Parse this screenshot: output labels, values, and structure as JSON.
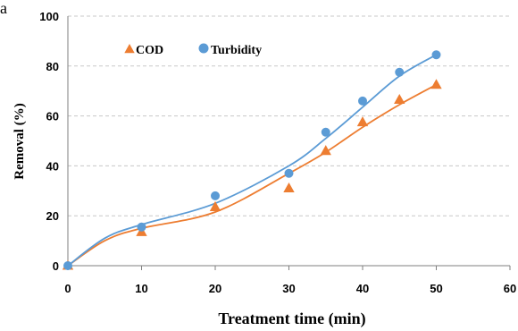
{
  "panel_label": "a",
  "chart_data": {
    "type": "scatter",
    "title": "",
    "xlabel": "Treatment time (min)",
    "ylabel": "Removal (%)",
    "xlim": [
      0,
      60
    ],
    "ylim": [
      0,
      100
    ],
    "xticks": [
      "0",
      "10",
      "20",
      "30",
      "40",
      "50",
      "60"
    ],
    "yticks": [
      "0",
      "20",
      "40",
      "60",
      "80",
      "100"
    ],
    "grid": "horizontal dashed",
    "legend_position": "top-left",
    "series": [
      {
        "name": "COD",
        "marker": "triangle",
        "color": "#ED7D31",
        "x": [
          0,
          10,
          20,
          30,
          35,
          40,
          45,
          50
        ],
        "y": [
          0,
          13.5,
          23.5,
          31,
          46,
          57.5,
          66.5,
          72.5
        ],
        "fit": [
          [
            0,
            0
          ],
          [
            5,
            10
          ],
          [
            10,
            15
          ],
          [
            20,
            21.5
          ],
          [
            30,
            37
          ],
          [
            35,
            45.5
          ],
          [
            40,
            55.5
          ],
          [
            45,
            64.5
          ],
          [
            50,
            72.5
          ]
        ]
      },
      {
        "name": "Turbidity",
        "marker": "circle",
        "color": "#5B9BD5",
        "x": [
          0,
          10,
          20,
          30,
          35,
          40,
          45,
          50
        ],
        "y": [
          0,
          15.5,
          28,
          37,
          53.5,
          66,
          77.5,
          84.5
        ],
        "fit": [
          [
            0,
            0
          ],
          [
            5,
            11
          ],
          [
            10,
            16.5
          ],
          [
            20,
            25
          ],
          [
            30,
            40
          ],
          [
            35,
            51
          ],
          [
            40,
            63.5
          ],
          [
            45,
            76
          ],
          [
            50,
            84.5
          ]
        ]
      }
    ]
  }
}
